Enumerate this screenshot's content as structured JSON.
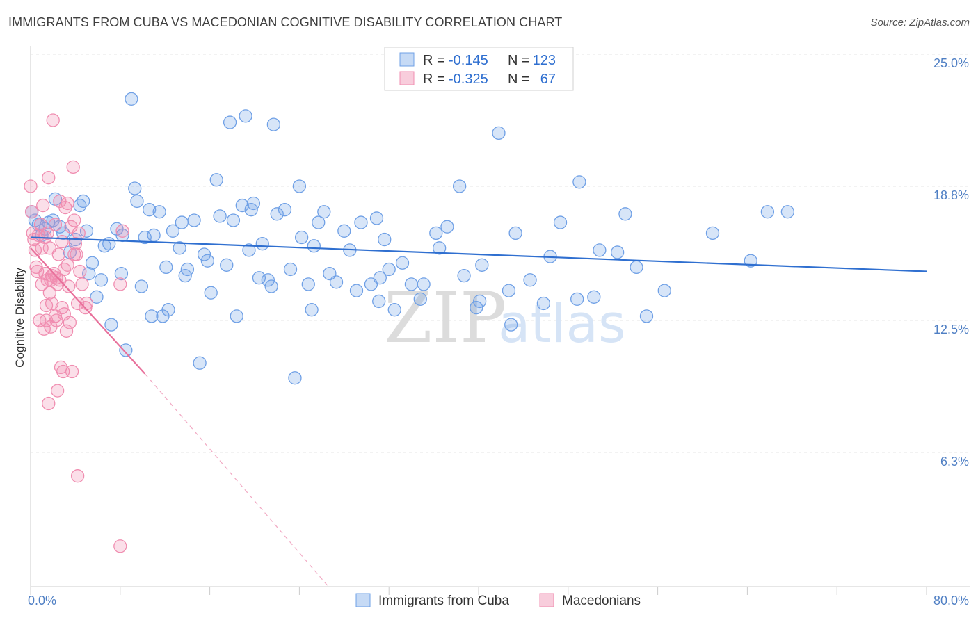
{
  "header": {
    "title": "IMMIGRANTS FROM CUBA VS MACEDONIAN COGNITIVE DISABILITY CORRELATION CHART",
    "source": "Source: ZipAtlas.com"
  },
  "watermark": {
    "zip": "ZIP",
    "atlas": "atlas"
  },
  "stats": {
    "r_label": "R =",
    "n_label": "N =",
    "rows": [
      {
        "r": "-0.145",
        "n": "123",
        "color": "#6fa0e6"
      },
      {
        "r": "-0.325",
        "n": "67",
        "color": "#f08db0"
      }
    ]
  },
  "chart_data": {
    "type": "scatter",
    "title": "IMMIGRANTS FROM CUBA VS MACEDONIAN COGNITIVE DISABILITY CORRELATION CHART",
    "xlabel": "",
    "ylabel": "Cognitive Disability",
    "xlim": [
      0,
      80
    ],
    "ylim": [
      0,
      25.0
    ],
    "x_tick_labels": [
      {
        "v": 0,
        "label": "0.0%"
      },
      {
        "v": 80,
        "label": "80.0%"
      }
    ],
    "y_ticks": [
      {
        "v": 25.0,
        "label": "25.0%"
      },
      {
        "v": 18.8,
        "label": "18.8%"
      },
      {
        "v": 12.5,
        "label": "12.5%"
      },
      {
        "v": 6.3,
        "label": "6.3%"
      }
    ],
    "grid": true,
    "legend_position": "bottom-center",
    "series": [
      {
        "name": "Immigrants from Cuba",
        "color": "#6fa0e6",
        "trend": {
          "x": [
            0,
            80
          ],
          "y": [
            16.4,
            14.8
          ],
          "color": "#2f6fd0"
        },
        "points": [
          [
            0.1,
            17.6
          ],
          [
            0.4,
            17.2
          ],
          [
            0.7,
            17.0
          ],
          [
            1.0,
            16.5
          ],
          [
            1.3,
            16.8
          ],
          [
            1.6,
            17.1
          ],
          [
            2.0,
            17.2
          ],
          [
            2.2,
            18.2
          ],
          [
            2.6,
            16.9
          ],
          [
            2.9,
            16.6
          ],
          [
            3.5,
            15.7
          ],
          [
            4.0,
            16.3
          ],
          [
            4.4,
            17.9
          ],
          [
            4.7,
            18.1
          ],
          [
            5.0,
            16.7
          ],
          [
            5.2,
            14.7
          ],
          [
            5.5,
            15.2
          ],
          [
            5.9,
            13.6
          ],
          [
            6.3,
            14.4
          ],
          [
            6.6,
            16.0
          ],
          [
            7.0,
            16.1
          ],
          [
            7.2,
            12.3
          ],
          [
            7.7,
            16.8
          ],
          [
            8.1,
            14.7
          ],
          [
            8.2,
            16.5
          ],
          [
            8.5,
            11.1
          ],
          [
            9.0,
            22.9
          ],
          [
            9.3,
            18.7
          ],
          [
            9.5,
            18.1
          ],
          [
            9.9,
            14.1
          ],
          [
            10.2,
            16.4
          ],
          [
            10.6,
            17.7
          ],
          [
            10.8,
            12.7
          ],
          [
            11.0,
            16.5
          ],
          [
            11.5,
            17.6
          ],
          [
            11.8,
            12.7
          ],
          [
            12.1,
            15.0
          ],
          [
            12.3,
            13.0
          ],
          [
            12.7,
            16.7
          ],
          [
            13.3,
            15.9
          ],
          [
            13.5,
            17.1
          ],
          [
            13.8,
            14.6
          ],
          [
            14.0,
            14.9
          ],
          [
            14.6,
            17.2
          ],
          [
            15.1,
            10.5
          ],
          [
            15.5,
            15.6
          ],
          [
            15.8,
            15.3
          ],
          [
            16.1,
            13.8
          ],
          [
            16.6,
            19.1
          ],
          [
            16.9,
            17.4
          ],
          [
            17.5,
            15.1
          ],
          [
            17.8,
            21.8
          ],
          [
            18.1,
            17.2
          ],
          [
            18.4,
            12.7
          ],
          [
            18.9,
            17.9
          ],
          [
            19.2,
            22.1
          ],
          [
            19.5,
            15.8
          ],
          [
            19.7,
            17.7
          ],
          [
            19.9,
            18.0
          ],
          [
            20.4,
            14.5
          ],
          [
            20.7,
            16.1
          ],
          [
            21.2,
            14.4
          ],
          [
            21.5,
            14.1
          ],
          [
            21.7,
            21.7
          ],
          [
            22.0,
            17.5
          ],
          [
            22.7,
            17.7
          ],
          [
            23.2,
            14.9
          ],
          [
            23.6,
            9.8
          ],
          [
            24.0,
            18.8
          ],
          [
            24.2,
            16.4
          ],
          [
            24.8,
            14.2
          ],
          [
            25.1,
            13.0
          ],
          [
            25.3,
            16.0
          ],
          [
            25.7,
            17.1
          ],
          [
            26.2,
            17.6
          ],
          [
            26.7,
            14.7
          ],
          [
            27.3,
            14.3
          ],
          [
            28.0,
            16.7
          ],
          [
            28.5,
            15.8
          ],
          [
            29.1,
            13.9
          ],
          [
            29.5,
            17.1
          ],
          [
            30.4,
            14.2
          ],
          [
            30.9,
            17.3
          ],
          [
            31.1,
            13.4
          ],
          [
            31.2,
            14.5
          ],
          [
            31.6,
            16.3
          ],
          [
            32.0,
            14.9
          ],
          [
            32.5,
            13.0
          ],
          [
            33.2,
            15.2
          ],
          [
            34.0,
            14.2
          ],
          [
            34.8,
            13.5
          ],
          [
            35.1,
            14.2
          ],
          [
            36.2,
            16.6
          ],
          [
            36.5,
            15.9
          ],
          [
            37.2,
            16.9
          ],
          [
            38.3,
            18.8
          ],
          [
            38.7,
            14.6
          ],
          [
            39.8,
            13.1
          ],
          [
            40.1,
            13.4
          ],
          [
            40.3,
            15.1
          ],
          [
            41.8,
            21.3
          ],
          [
            42.7,
            13.9
          ],
          [
            42.9,
            12.3
          ],
          [
            43.3,
            16.6
          ],
          [
            44.6,
            14.4
          ],
          [
            45.8,
            13.3
          ],
          [
            46.4,
            15.5
          ],
          [
            47.3,
            17.1
          ],
          [
            48.8,
            13.5
          ],
          [
            49.0,
            19.0
          ],
          [
            50.3,
            13.6
          ],
          [
            50.8,
            15.8
          ],
          [
            52.4,
            15.7
          ],
          [
            53.1,
            17.5
          ],
          [
            54.1,
            15.0
          ],
          [
            55.0,
            12.7
          ],
          [
            56.6,
            13.9
          ],
          [
            60.9,
            16.6
          ],
          [
            64.3,
            15.3
          ],
          [
            65.8,
            17.6
          ],
          [
            67.6,
            17.6
          ]
        ]
      },
      {
        "name": "Macedonians",
        "color": "#f08db0",
        "trend": {
          "x": [
            0,
            10.2
          ],
          "y": [
            15.9,
            10.0
          ],
          "color": "#e8709b",
          "dashed_to": [
            26.6,
            0
          ]
        },
        "points": [
          [
            0.0,
            18.8
          ],
          [
            0.1,
            17.6
          ],
          [
            0.2,
            16.6
          ],
          [
            0.3,
            16.3
          ],
          [
            0.4,
            15.8
          ],
          [
            0.5,
            15.0
          ],
          [
            0.6,
            14.8
          ],
          [
            0.7,
            16.5
          ],
          [
            0.8,
            12.5
          ],
          [
            0.9,
            17.0
          ],
          [
            1.0,
            15.9
          ],
          [
            1.0,
            14.2
          ],
          [
            1.1,
            17.9
          ],
          [
            1.2,
            12.1
          ],
          [
            1.3,
            16.4
          ],
          [
            1.3,
            14.7
          ],
          [
            1.4,
            13.2
          ],
          [
            1.4,
            12.5
          ],
          [
            1.5,
            16.6
          ],
          [
            1.5,
            14.4
          ],
          [
            1.6,
            19.2
          ],
          [
            1.6,
            8.6
          ],
          [
            1.7,
            15.9
          ],
          [
            1.7,
            13.8
          ],
          [
            1.8,
            14.4
          ],
          [
            1.8,
            12.2
          ],
          [
            1.9,
            14.6
          ],
          [
            1.9,
            13.3
          ],
          [
            2.0,
            21.9
          ],
          [
            2.1,
            14.7
          ],
          [
            2.2,
            12.7
          ],
          [
            2.2,
            17.0
          ],
          [
            2.3,
            14.5
          ],
          [
            2.3,
            12.5
          ],
          [
            2.4,
            9.2
          ],
          [
            2.4,
            14.2
          ],
          [
            2.5,
            15.6
          ],
          [
            2.6,
            14.4
          ],
          [
            2.6,
            18.1
          ],
          [
            2.7,
            10.3
          ],
          [
            2.8,
            16.2
          ],
          [
            2.8,
            13.1
          ],
          [
            2.9,
            10.1
          ],
          [
            3.0,
            12.8
          ],
          [
            3.0,
            14.9
          ],
          [
            3.1,
            17.8
          ],
          [
            3.2,
            12.0
          ],
          [
            3.3,
            15.1
          ],
          [
            3.3,
            18.0
          ],
          [
            3.4,
            14.1
          ],
          [
            3.5,
            12.4
          ],
          [
            3.6,
            16.9
          ],
          [
            3.7,
            10.1
          ],
          [
            3.8,
            19.7
          ],
          [
            3.9,
            15.6
          ],
          [
            3.9,
            17.2
          ],
          [
            4.0,
            16.1
          ],
          [
            4.1,
            15.6
          ],
          [
            4.2,
            13.3
          ],
          [
            4.2,
            5.2
          ],
          [
            4.3,
            16.6
          ],
          [
            4.4,
            14.8
          ],
          [
            4.6,
            14.2
          ],
          [
            4.9,
            13.1
          ],
          [
            5.0,
            13.3
          ],
          [
            8.0,
            14.2
          ],
          [
            8.2,
            16.7
          ],
          [
            8.0,
            1.9
          ]
        ]
      }
    ]
  },
  "legend": {
    "items": [
      {
        "label": "Immigrants from Cuba",
        "color": "#6fa0e6"
      },
      {
        "label": "Macedonians",
        "color": "#f08db0"
      }
    ]
  }
}
